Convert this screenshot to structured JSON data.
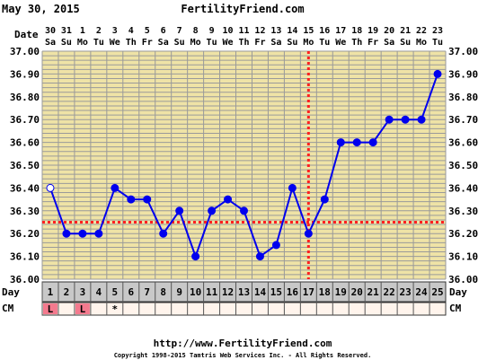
{
  "header": {
    "date": "May 30, 2015",
    "site": "FertilityFriend.com"
  },
  "footer": {
    "url": "http://www.FertilityFriend.com",
    "copyright": "Copyright 1998-2015 Tamtris Web Services Inc. - All Rights Reserved."
  },
  "row_labels": {
    "date": "Date",
    "day": "Day",
    "cm": "CM"
  },
  "colors": {
    "plot_bg": "#efe3a6",
    "grid": "#9a9a9a",
    "line": "#0000ee",
    "marker": "#ff2020",
    "day_cell": "#c8c8c8",
    "cm_bg": "#fff4ec",
    "cm_mark": "#f47a8e"
  },
  "chart_data": {
    "type": "line",
    "x": [
      1,
      2,
      3,
      4,
      5,
      6,
      7,
      8,
      9,
      10,
      11,
      12,
      13,
      14,
      15,
      16,
      17,
      18,
      19,
      20,
      21,
      22,
      23,
      24,
      25
    ],
    "dates": [
      "30",
      "31",
      "1",
      "2",
      "3",
      "4",
      "5",
      "6",
      "7",
      "8",
      "9",
      "10",
      "11",
      "12",
      "13",
      "14",
      "15",
      "16",
      "17",
      "18",
      "19",
      "20",
      "21",
      "22",
      "23"
    ],
    "weekdays": [
      "Sa",
      "Su",
      "Mo",
      "Tu",
      "We",
      "Th",
      "Fr",
      "Sa",
      "Su",
      "Mo",
      "Tu",
      "We",
      "Th",
      "Fr",
      "Sa",
      "Su",
      "Mo",
      "Tu",
      "We",
      "Th",
      "Fr",
      "Sa",
      "Su",
      "Mo",
      "Tu"
    ],
    "series": [
      {
        "values": [
          36.4,
          36.2,
          36.2,
          36.2,
          36.4,
          36.35,
          36.35,
          36.2,
          36.3,
          36.1,
          36.3,
          36.35,
          36.3,
          36.1,
          36.15,
          36.4,
          36.2,
          36.35,
          36.6,
          36.6,
          36.6,
          36.7,
          36.7,
          36.7,
          36.9
        ],
        "open_points": [
          1
        ]
      }
    ],
    "ylim": [
      36.0,
      37.0
    ],
    "y_ticks": [
      "36.00",
      "36.10",
      "36.20",
      "36.30",
      "36.40",
      "36.50",
      "36.60",
      "36.70",
      "36.80",
      "36.90",
      "37.00"
    ],
    "coverline": 36.25,
    "ovulation_day": 17,
    "cervical_mucus": [
      "L",
      "",
      "L",
      "",
      "*",
      "",
      "",
      "",
      "",
      "",
      "",
      "",
      "",
      "",
      "",
      "",
      "",
      "",
      "",
      "",
      "",
      "",
      "",
      "",
      ""
    ],
    "grid": true
  }
}
